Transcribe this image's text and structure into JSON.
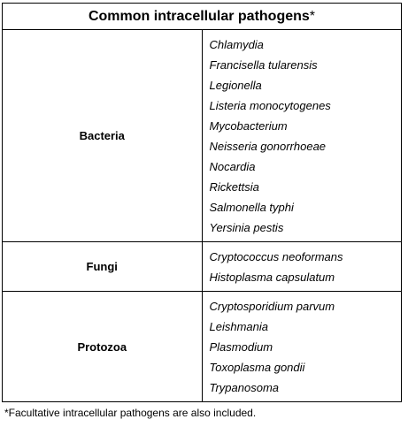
{
  "table": {
    "title": "Common intracellular pathogens",
    "title_marker": "*",
    "groups": [
      {
        "category": "Bacteria",
        "organisms": [
          "Chlamydia",
          "Francisella tularensis",
          "Legionella",
          "Listeria monocytogenes",
          "Mycobacterium",
          "Neisseria gonorrhoeae",
          "Nocardia",
          "Rickettsia",
          "Salmonella typhi",
          "Yersinia pestis"
        ]
      },
      {
        "category": "Fungi",
        "organisms": [
          "Cryptococcus neoformans",
          "Histoplasma capsulatum"
        ]
      },
      {
        "category": "Protozoa",
        "organisms": [
          "Cryptosporidium parvum",
          "Leishmania",
          "Plasmodium",
          "Toxoplasma gondii",
          "Trypanosoma"
        ]
      }
    ]
  },
  "footnote": "*Facultative intracellular pathogens are also included."
}
